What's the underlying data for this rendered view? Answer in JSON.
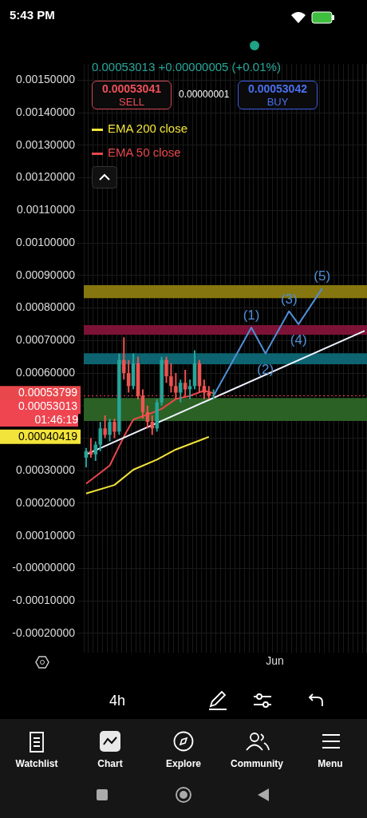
{
  "chart_data": {
    "type": "candlestick",
    "categories": [
      null,
      null,
      null,
      null,
      null,
      null,
      null,
      null,
      null,
      null,
      null,
      null,
      null,
      null,
      null,
      null,
      null,
      null,
      null,
      null,
      null,
      null,
      null,
      null,
      null,
      null,
      null,
      null,
      null,
      null,
      null,
      null,
      null,
      null,
      null,
      null,
      null,
      null,
      null,
      null,
      "Jun",
      null,
      null,
      null,
      null,
      null,
      null,
      null,
      null,
      null,
      null,
      null,
      null,
      null,
      null,
      null,
      null,
      null,
      null,
      null
    ],
    "ohlc": [
      [
        0.00034,
        0.00037,
        0.00031,
        0.00036
      ],
      [
        0.00036,
        0.0004,
        0.00034,
        0.00035
      ],
      [
        0.00035,
        0.00039,
        0.00033,
        0.00038
      ],
      [
        0.00038,
        0.00045,
        0.00036,
        0.00043
      ],
      [
        0.00043,
        0.00047,
        0.0004,
        0.00041
      ],
      [
        0.00041,
        0.00046,
        0.00039,
        0.00045
      ],
      [
        0.00045,
        0.00046,
        0.0004,
        0.00042
      ],
      [
        0.00042,
        0.00066,
        0.00041,
        0.00064
      ],
      [
        0.00064,
        0.00071,
        0.00058,
        0.0006
      ],
      [
        0.0006,
        0.00064,
        0.00054,
        0.00056
      ],
      [
        0.00056,
        0.00066,
        0.00055,
        0.00063
      ],
      [
        0.00063,
        0.00065,
        0.00052,
        0.00053
      ],
      [
        0.00053,
        0.00055,
        0.00046,
        0.00048
      ],
      [
        0.00048,
        0.0005,
        0.00043,
        0.00045
      ],
      [
        0.00045,
        0.00047,
        0.00041,
        0.00043
      ],
      [
        0.00043,
        0.00052,
        0.00042,
        0.00051
      ],
      [
        0.00051,
        0.00065,
        0.0005,
        0.00064
      ],
      [
        0.00064,
        0.00065,
        0.00057,
        0.00059
      ],
      [
        0.00059,
        0.00063,
        0.00054,
        0.00056
      ],
      [
        0.00056,
        0.0006,
        0.00052,
        0.00054
      ],
      [
        0.00054,
        0.00058,
        0.00051,
        0.00057
      ],
      [
        0.00057,
        0.00061,
        0.00053,
        0.00055
      ],
      [
        0.00055,
        0.00058,
        0.00052,
        0.00056
      ],
      [
        0.00056,
        0.00067,
        0.00055,
        0.00063
      ],
      [
        0.00063,
        0.00064,
        0.00054,
        0.00056
      ],
      [
        0.00056,
        0.00058,
        0.00052,
        0.00054
      ],
      [
        0.00054,
        0.00056,
        0.00052,
        0.00053
      ],
      [
        0.00053,
        0.00055,
        0.00052,
        0.00053013
      ],
      null,
      null,
      null,
      null,
      null,
      null,
      null,
      null,
      null,
      null,
      null,
      null,
      null,
      null,
      null,
      null,
      null,
      null,
      null,
      null,
      null,
      null,
      null,
      null,
      null,
      null,
      null,
      null,
      null,
      null,
      null,
      null
    ],
    "series": [
      {
        "name": "EMA 200 close",
        "type": "line",
        "color": "#f2e43a",
        "values": [
          0.00023,
          null,
          null,
          null,
          null,
          null,
          0.000256,
          null,
          null,
          null,
          0.000303,
          null,
          null,
          null,
          null,
          0.000334,
          null,
          null,
          null,
          0.000365,
          null,
          null,
          null,
          null,
          null,
          null,
          0.000404,
          null,
          null,
          null,
          null,
          null,
          null,
          null,
          null,
          null,
          null,
          null,
          null,
          null,
          null,
          null,
          null,
          null,
          null,
          null,
          null,
          null,
          null,
          null,
          null,
          null,
          null,
          null,
          null,
          null,
          null,
          null,
          null,
          null
        ]
      },
      {
        "name": "EMA 50 close",
        "type": "line",
        "color": "#e8474c",
        "values": [
          0.00026,
          null,
          null,
          null,
          null,
          0.000316,
          null,
          null,
          0.000405,
          null,
          0.000457,
          null,
          null,
          null,
          0.000478,
          null,
          0.00049,
          null,
          null,
          0.00052,
          null,
          null,
          0.00053,
          null,
          null,
          0.000546,
          null,
          0.000538,
          null,
          null,
          null,
          null,
          null,
          null,
          null,
          null,
          null,
          null,
          null,
          null,
          null,
          null,
          null,
          null,
          null,
          null,
          null,
          null,
          null,
          null,
          null,
          null,
          null,
          null,
          null,
          null,
          null,
          null,
          null,
          null
        ]
      },
      {
        "type": "line",
        "color": "#eef3ff",
        "values": [
          0.00035,
          null,
          null,
          null,
          null,
          null,
          null,
          null,
          null,
          null,
          null,
          null,
          null,
          null,
          null,
          null,
          null,
          null,
          null,
          null,
          null,
          null,
          null,
          null,
          null,
          null,
          null,
          null,
          null,
          null,
          null,
          null,
          null,
          null,
          null,
          null,
          null,
          null,
          null,
          null,
          null,
          null,
          null,
          null,
          null,
          null,
          null,
          null,
          null,
          null,
          null,
          null,
          null,
          null,
          null,
          null,
          null,
          null,
          null,
          0.00073
        ]
      },
      {
        "type": "line",
        "color": "#4f8fd6",
        "values": [
          null,
          null,
          null,
          null,
          null,
          null,
          null,
          null,
          null,
          null,
          null,
          null,
          null,
          null,
          null,
          null,
          null,
          null,
          null,
          null,
          null,
          null,
          null,
          null,
          null,
          null,
          null,
          0.00053,
          null,
          null,
          null,
          null,
          null,
          null,
          null,
          0.00074,
          null,
          null,
          0.00066,
          null,
          null,
          null,
          null,
          0.00079,
          null,
          0.00075,
          null,
          null,
          null,
          null,
          0.00086,
          null,
          null,
          null,
          null,
          null,
          null,
          null,
          null,
          null
        ]
      }
    ],
    "ylim": [
      -0.00024,
      0.00155
    ],
    "yticks": [
      {
        "value": -0.0002,
        "label": "-0.00020000"
      },
      {
        "value": -0.0001,
        "label": "-0.00010000"
      },
      {
        "value": 0,
        "label": "-0.00000000"
      },
      {
        "value": 0.0001,
        "label": "0.00010000"
      },
      {
        "value": 0.0002,
        "label": "0.00020000"
      },
      {
        "value": 0.0003,
        "label": "0.00030000"
      },
      {
        "value": 0.0004,
        "label": null
      },
      {
        "value": 0.0005,
        "label": null
      },
      {
        "value": 0.0006,
        "label": "0.00060000"
      },
      {
        "value": 0.0007,
        "label": "0.00070000"
      },
      {
        "value": 0.0008,
        "label": "0.00080000"
      },
      {
        "value": 0.0009,
        "label": "0.00090000"
      },
      {
        "value": 0.001,
        "label": "0.00100000"
      },
      {
        "value": 0.0011,
        "label": "0.00110000"
      },
      {
        "value": 0.0012,
        "label": "0.00120000"
      },
      {
        "value": 0.0013,
        "label": "0.00130000"
      },
      {
        "value": 0.0014,
        "label": "0.00140000"
      },
      {
        "value": 0.0015,
        "label": "0.00150000"
      }
    ],
    "bands": [
      {
        "axis": "y",
        "from": 0.00083,
        "to": 0.00087,
        "color": "#86760f"
      },
      {
        "axis": "y",
        "from": 0.000718,
        "to": 0.000747,
        "color": "#7c1236"
      },
      {
        "axis": "y",
        "from": 0.000627,
        "to": 0.000661,
        "color": "#0d6470"
      },
      {
        "axis": "y",
        "from": 0.000453,
        "to": 0.000523,
        "color": "#2b6125"
      }
    ],
    "ref_lines": [
      {
        "axis": "y",
        "value": 0.00053013,
        "label": "0.00053013",
        "color": "#ee4550",
        "line_style": "dotted"
      }
    ],
    "annotations": [
      "0.00053799",
      "0.00040419",
      {
        "text": "(1)",
        "y": 0.00074
      },
      {
        "text": "(2)",
        "y": 0.00066
      },
      {
        "text": "(3)",
        "y": 0.00079
      },
      {
        "text": "(4)",
        "y": 0.00075
      },
      {
        "text": "(5)",
        "y": 0.00086
      },
      "5:43 PM",
      "0.00053013  +0.00000005 (+0.01%)",
      "0.00053041",
      "SELL",
      "0.00000001",
      "0.00053042",
      "BUY",
      "01:46:19",
      "4h",
      "Watchlist",
      "Chart",
      "Explore",
      "Community",
      "Menu"
    ],
    "grid": true,
    "legend": "top left"
  }
}
